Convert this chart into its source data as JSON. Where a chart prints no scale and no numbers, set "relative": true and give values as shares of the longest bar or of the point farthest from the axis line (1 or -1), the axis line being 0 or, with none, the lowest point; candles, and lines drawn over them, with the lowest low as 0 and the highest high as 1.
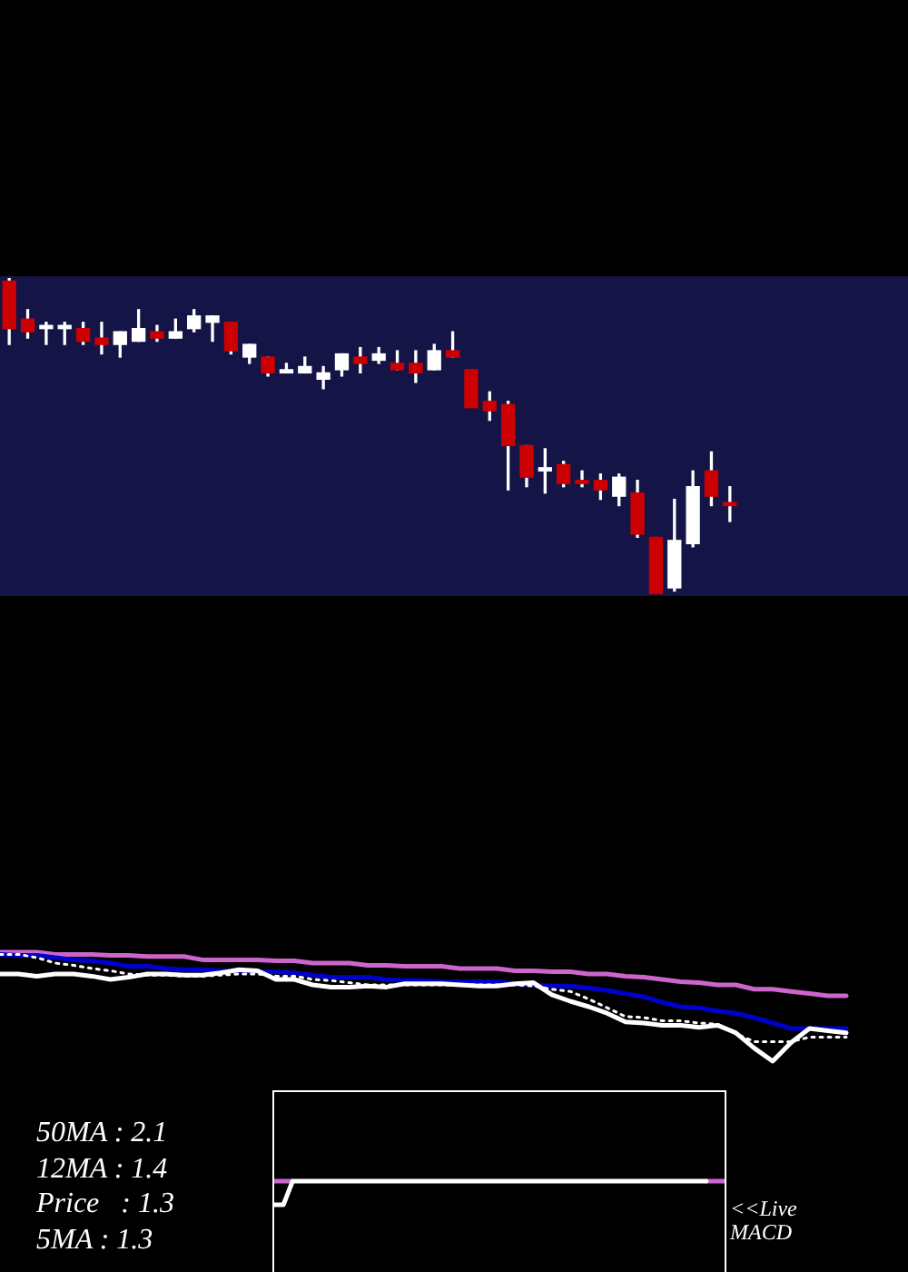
{
  "chart_data": [
    {
      "type": "candlestick",
      "relative": true,
      "categories": [
        null,
        null,
        null,
        null,
        null,
        null,
        null,
        null,
        null,
        null,
        null,
        null,
        null,
        null,
        null,
        null,
        null,
        null,
        null,
        null,
        null,
        null,
        null,
        null,
        null,
        null,
        null,
        null,
        null,
        null,
        null,
        null,
        null,
        null,
        null,
        null,
        null,
        null,
        null,
        null
      ],
      "ohlc": [
        [
          0.99,
          1.0,
          0.79,
          0.84
        ],
        [
          0.87,
          0.9,
          0.81,
          0.83
        ],
        [
          0.84,
          0.86,
          0.79,
          0.85
        ],
        [
          0.84,
          0.86,
          0.79,
          0.85
        ],
        [
          0.84,
          0.86,
          0.79,
          0.8
        ],
        [
          0.81,
          0.86,
          0.76,
          0.79
        ],
        [
          0.79,
          0.83,
          0.75,
          0.83
        ],
        [
          0.8,
          0.9,
          0.8,
          0.84
        ],
        [
          0.83,
          0.85,
          0.8,
          0.81
        ],
        [
          0.81,
          0.87,
          0.81,
          0.83
        ],
        [
          0.84,
          0.9,
          0.83,
          0.88
        ],
        [
          0.86,
          0.88,
          0.8,
          0.88
        ],
        [
          0.86,
          0.86,
          0.76,
          0.77
        ],
        [
          0.75,
          0.79,
          0.73,
          0.79
        ],
        [
          0.75,
          0.75,
          0.69,
          0.7
        ],
        [
          0.7,
          0.73,
          0.7,
          0.71
        ],
        [
          0.7,
          0.75,
          0.7,
          0.72
        ],
        [
          0.68,
          0.72,
          0.65,
          0.7
        ],
        [
          0.71,
          0.76,
          0.69,
          0.76
        ],
        [
          0.75,
          0.78,
          0.7,
          0.73
        ],
        [
          0.74,
          0.78,
          0.73,
          0.76
        ],
        [
          0.73,
          0.77,
          0.71,
          0.71
        ],
        [
          0.73,
          0.77,
          0.67,
          0.7
        ],
        [
          0.71,
          0.79,
          0.71,
          0.77
        ],
        [
          0.77,
          0.83,
          0.75,
          0.75
        ],
        [
          0.71,
          0.71,
          0.59,
          0.59
        ],
        [
          0.61,
          0.64,
          0.55,
          0.58
        ],
        [
          0.6,
          0.61,
          0.33,
          0.47
        ],
        [
          0.47,
          0.47,
          0.34,
          0.37
        ],
        [
          0.39,
          0.46,
          0.32,
          0.4
        ],
        [
          0.41,
          0.42,
          0.34,
          0.35
        ],
        [
          0.36,
          0.39,
          0.34,
          0.35
        ],
        [
          0.36,
          0.38,
          0.3,
          0.33
        ],
        [
          0.31,
          0.38,
          0.28,
          0.37
        ],
        [
          0.32,
          0.36,
          0.18,
          0.19
        ],
        [
          0.18,
          0.18,
          0.0,
          0.0
        ],
        [
          0.02,
          0.3,
          0.01,
          0.17
        ],
        [
          0.16,
          0.39,
          0.15,
          0.34
        ],
        [
          0.39,
          0.45,
          0.28,
          0.31
        ],
        [
          0.29,
          0.34,
          0.23,
          0.28
        ]
      ],
      "colors": [
        "#cc0000",
        "#cc0000",
        "#ffffff",
        "#ffffff",
        "#cc0000",
        "#cc0000",
        "#ffffff",
        "#ffffff",
        "#cc0000",
        "#ffffff",
        "#ffffff",
        "#ffffff",
        "#cc0000",
        "#ffffff",
        "#cc0000",
        "#ffffff",
        "#ffffff",
        "#ffffff",
        "#ffffff",
        "#cc0000",
        "#ffffff",
        "#cc0000",
        "#cc0000",
        "#ffffff",
        "#cc0000",
        "#cc0000",
        "#cc0000",
        "#cc0000",
        "#cc0000",
        "#ffffff",
        "#cc0000",
        "#cc0000",
        "#cc0000",
        "#ffffff",
        "#cc0000",
        "#cc0000",
        "#ffffff",
        "#ffffff",
        "#cc0000",
        "#cc0000"
      ]
    },
    {
      "type": "line",
      "relative": true,
      "categories": [
        null,
        null,
        null,
        null,
        null,
        null,
        null,
        null,
        null,
        null,
        null,
        null,
        null,
        null,
        null,
        null,
        null,
        null,
        null,
        null,
        null,
        null,
        null,
        null,
        null,
        null,
        null,
        null,
        null,
        null,
        null,
        null,
        null,
        null,
        null,
        null,
        null,
        null,
        null,
        null,
        null,
        null,
        null,
        null,
        null,
        null,
        null
      ],
      "series": [
        {
          "color": "#cc66cc",
          "values": [
            1.0,
            1.0,
            1.0,
            0.98,
            0.98,
            0.98,
            0.97,
            0.97,
            0.96,
            0.96,
            0.96,
            0.93,
            0.93,
            0.93,
            0.93,
            0.92,
            0.92,
            0.9,
            0.9,
            0.9,
            0.88,
            0.88,
            0.87,
            0.87,
            0.87,
            0.85,
            0.85,
            0.85,
            0.83,
            0.83,
            0.82,
            0.82,
            0.8,
            0.8,
            0.78,
            0.77,
            0.75,
            0.73,
            0.72,
            0.7,
            0.7,
            0.66,
            0.66,
            0.64,
            0.62,
            0.6,
            0.6
          ]
        },
        {
          "color": "#0000cc",
          "values": [
            0.98,
            0.97,
            0.97,
            0.95,
            0.93,
            0.92,
            0.9,
            0.87,
            0.87,
            0.85,
            0.84,
            0.84,
            0.83,
            0.83,
            0.82,
            0.82,
            0.81,
            0.79,
            0.77,
            0.77,
            0.77,
            0.75,
            0.74,
            0.74,
            0.73,
            0.73,
            0.73,
            0.73,
            0.71,
            0.7,
            0.69,
            0.69,
            0.67,
            0.65,
            0.62,
            0.59,
            0.54,
            0.5,
            0.49,
            0.46,
            0.44,
            0.4,
            0.35,
            0.3,
            0.3,
            0.3,
            0.3
          ]
        },
        {
          "color": "#ffffff",
          "values": [
            0.8,
            0.8,
            0.78,
            0.8,
            0.8,
            0.78,
            0.75,
            0.77,
            0.8,
            0.8,
            0.79,
            0.79,
            0.81,
            0.84,
            0.83,
            0.75,
            0.75,
            0.7,
            0.68,
            0.68,
            0.69,
            0.68,
            0.71,
            0.71,
            0.71,
            0.7,
            0.69,
            0.69,
            0.71,
            0.72,
            0.61,
            0.55,
            0.5,
            0.44,
            0.36,
            0.35,
            0.33,
            0.33,
            0.31,
            0.33,
            0.26,
            0.12,
            0.0,
            0.17,
            0.3,
            0.28,
            0.26
          ]
        },
        {
          "color": "#ffffff",
          "line_style": "dotted",
          "values": [
            0.98,
            0.98,
            0.95,
            0.9,
            0.88,
            0.85,
            0.83,
            0.8,
            0.79,
            0.79,
            0.78,
            0.78,
            0.79,
            0.8,
            0.8,
            0.78,
            0.78,
            0.75,
            0.74,
            0.72,
            0.7,
            0.7,
            0.7,
            0.7,
            0.7,
            0.7,
            0.7,
            0.7,
            0.7,
            0.69,
            0.66,
            0.64,
            0.57,
            0.49,
            0.41,
            0.4,
            0.37,
            0.37,
            0.35,
            0.34,
            0.25,
            0.18,
            0.18,
            0.18,
            0.22,
            0.22,
            0.22
          ]
        }
      ],
      "annotations": [
        "50MA : 2.1",
        "12MA : 1.4",
        "Price   : 1.3",
        "5MA : 1.3"
      ]
    },
    {
      "type": "line",
      "relative": true,
      "categories": [
        null,
        null,
        null,
        null,
        null,
        null,
        null,
        null,
        null,
        null,
        null,
        null,
        null,
        null,
        null,
        null,
        null,
        null,
        null,
        null,
        null,
        null,
        null,
        null,
        null,
        null,
        null,
        null,
        null,
        null,
        null,
        null,
        null,
        null,
        null,
        null,
        null,
        null,
        null,
        null,
        null,
        null,
        null,
        null,
        null,
        null,
        null,
        null,
        null,
        null
      ],
      "series": [
        {
          "color": "#cc66cc",
          "values": [
            1,
            1,
            1,
            null,
            null,
            null,
            null,
            null,
            null,
            null,
            null,
            null,
            null,
            null,
            null,
            null,
            null,
            null,
            null,
            null,
            null,
            null,
            null,
            null,
            null,
            null,
            null,
            null,
            null,
            null,
            null,
            null,
            null,
            null,
            null,
            null,
            null,
            null,
            null,
            null,
            null,
            null,
            null,
            null,
            null,
            null,
            null,
            1,
            1,
            1
          ]
        },
        {
          "color": "#ffffff",
          "values": [
            0.74,
            0.74,
            1,
            1,
            1,
            1,
            1,
            1,
            1,
            1,
            1,
            1,
            1,
            1,
            1,
            1,
            1,
            1,
            1,
            1,
            1,
            1,
            1,
            1,
            1,
            1,
            1,
            1,
            1,
            1,
            1,
            1,
            1,
            1,
            1,
            1,
            1,
            1,
            1,
            1,
            1,
            1,
            1,
            1,
            1,
            1,
            1,
            1,
            null,
            null
          ]
        }
      ],
      "annotations": [
        "<<Live MACD"
      ]
    }
  ]
}
